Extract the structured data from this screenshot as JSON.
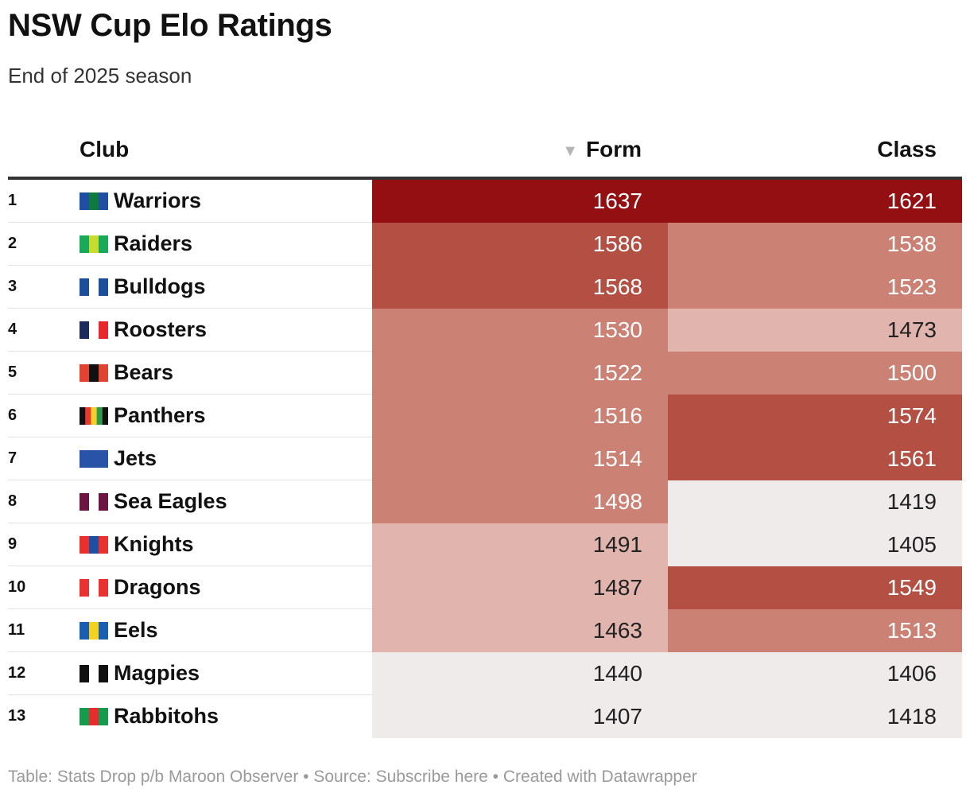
{
  "title": "NSW Cup Elo Ratings",
  "subtitle": "End of 2025 season",
  "columns": {
    "club": "Club",
    "form": "Form",
    "class": "Class"
  },
  "sort_icon": "▼",
  "palette": {
    "level0": "#eeebea",
    "level1": "#e1b5ae",
    "level2": "#cb8174",
    "level3": "#b35043",
    "level4": "#940f12",
    "text_dark": "#222222",
    "text_light": "#ffffff"
  },
  "chart_data": {
    "type": "table",
    "title": "NSW Cup Elo Ratings",
    "subtitle": "End of 2025 season",
    "columns": [
      "Club",
      "Form",
      "Class"
    ],
    "sorted_by": "Form",
    "sort_order": "descending",
    "rows": [
      {
        "rank": "1",
        "club": "Warriors",
        "form": 1637,
        "class": 1621,
        "colors": [
          "#1f4fa0",
          "#0e7a3d",
          "#1f4fa0"
        ]
      },
      {
        "rank": "2",
        "club": "Raiders",
        "form": 1586,
        "class": 1538,
        "colors": [
          "#1aa85a",
          "#c6dc2e",
          "#1aa85a"
        ]
      },
      {
        "rank": "3",
        "club": "Bulldogs",
        "form": 1568,
        "class": 1523,
        "colors": [
          "#1b4f9a",
          "#ffffff",
          "#1b4f9a"
        ]
      },
      {
        "rank": "4",
        "club": "Roosters",
        "form": 1530,
        "class": 1473,
        "colors": [
          "#1c2b5a",
          "#ffffff",
          "#e8262e"
        ]
      },
      {
        "rank": "5",
        "club": "Bears",
        "form": 1522,
        "class": 1500,
        "colors": [
          "#e0432f",
          "#111111",
          "#e0432f"
        ]
      },
      {
        "rank": "6",
        "club": "Panthers",
        "form": 1516,
        "class": 1574,
        "colors": [
          "#111111",
          "#e53b2f",
          "#f5d02a",
          "#2f9a4a",
          "#111111"
        ]
      },
      {
        "rank": "7",
        "club": "Jets",
        "form": 1514,
        "class": 1561,
        "colors": [
          "#2953a6",
          "#2953a6",
          "#2953a6"
        ]
      },
      {
        "rank": "8",
        "club": "Sea Eagles",
        "form": 1498,
        "class": 1419,
        "colors": [
          "#6b1540",
          "#ffffff",
          "#6b1540"
        ]
      },
      {
        "rank": "9",
        "club": "Knights",
        "form": 1491,
        "class": 1405,
        "colors": [
          "#e8302c",
          "#1f4fa0",
          "#e8302c"
        ]
      },
      {
        "rank": "10",
        "club": "Dragons",
        "form": 1487,
        "class": 1549,
        "colors": [
          "#ea3233",
          "#ffffff",
          "#ea3233"
        ]
      },
      {
        "rank": "11",
        "club": "Eels",
        "form": 1463,
        "class": 1513,
        "colors": [
          "#1a5eb0",
          "#f5d21f",
          "#1a5eb0"
        ]
      },
      {
        "rank": "12",
        "club": "Magpies",
        "form": 1440,
        "class": 1406,
        "colors": [
          "#111111",
          "#ffffff",
          "#111111"
        ]
      },
      {
        "rank": "13",
        "club": "Rabbitohs",
        "form": 1407,
        "class": 1418,
        "colors": [
          "#159a4e",
          "#e52d2d",
          "#159a4e"
        ]
      }
    ]
  },
  "footer": "Table: Stats Drop p/b Maroon Observer • Source: Subscribe here • Created with Datawrapper"
}
